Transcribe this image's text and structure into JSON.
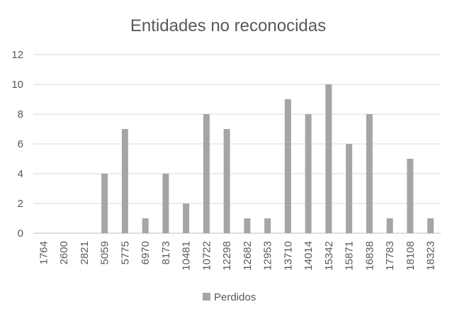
{
  "chart_data": {
    "type": "bar",
    "title": "Entidades no reconocidas",
    "xlabel": "",
    "ylabel": "",
    "categories": [
      "1764",
      "2600",
      "2821",
      "5059",
      "5775",
      "6970",
      "8173",
      "10481",
      "10722",
      "12298",
      "12682",
      "12953",
      "13710",
      "14014",
      "15342",
      "15871",
      "16838",
      "17783",
      "18108",
      "18323"
    ],
    "series": [
      {
        "name": "Perdidos",
        "values": [
          0,
          0,
          0,
          4,
          7,
          1,
          4,
          2,
          8,
          7,
          1,
          1,
          9,
          8,
          10,
          6,
          8,
          1,
          5,
          1
        ]
      }
    ],
    "ylim": [
      0,
      12
    ],
    "yticks": [
      0,
      2,
      4,
      6,
      8,
      10,
      12
    ],
    "grid": true,
    "legend_position": "bottom",
    "colors": {
      "bar": "#a5a5a5",
      "grid": "#d9d9d9",
      "axis": "#bfbfbf",
      "text": "#595959"
    }
  }
}
